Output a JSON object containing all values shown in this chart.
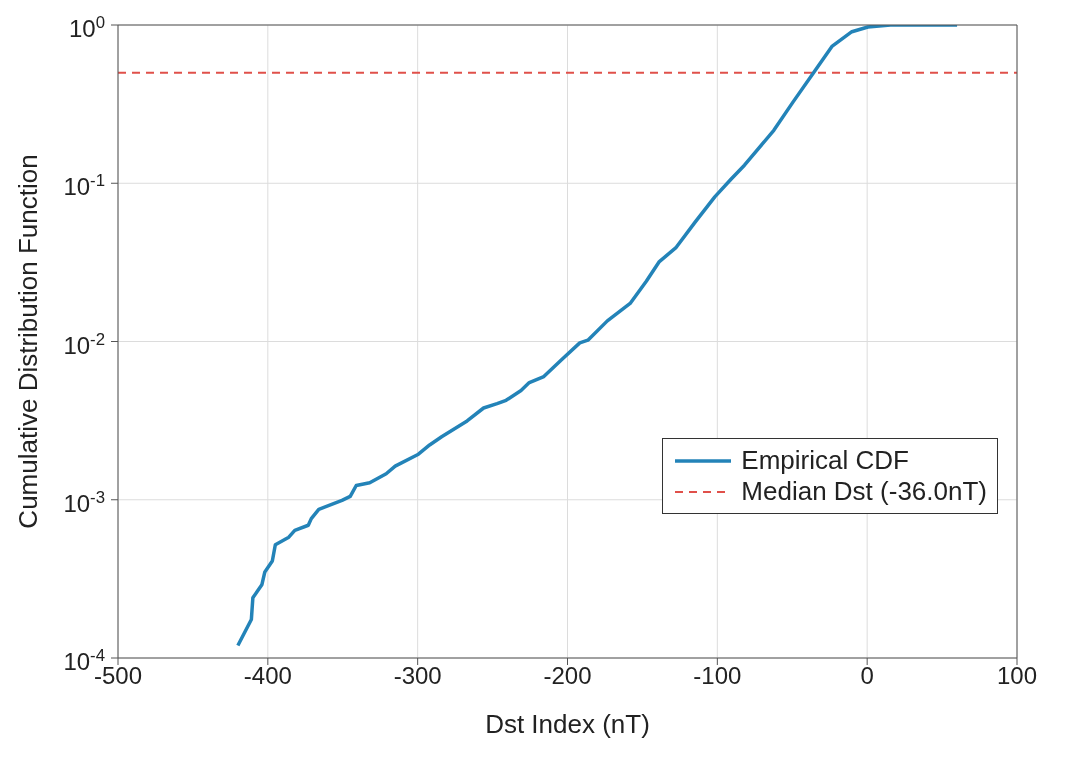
{
  "chart_data": {
    "type": "line",
    "xlabel": "Dst Index (nT)",
    "ylabel": "Cumulative Distribution Function",
    "log": "y",
    "grid": true,
    "legend": "right",
    "line_style": "solid",
    "marker": "none",
    "xlim": [
      -500,
      100
    ],
    "xticks": [
      -500,
      -400,
      -300,
      -200,
      -100,
      0,
      100
    ],
    "ylim": [
      0.0001,
      1
    ],
    "yticks": [
      {
        "value": 0.0001,
        "label": "10$^{-4}$"
      },
      {
        "value": 0.001,
        "label": "10$^{-3}$"
      },
      {
        "value": 0.01,
        "label": "10$^{-2}$"
      },
      {
        "value": 0.1,
        "label": "10$^{-1}$"
      },
      {
        "value": 1,
        "label": "10$^{0}$"
      }
    ],
    "series": [
      {
        "name": "Empirical CDF",
        "color": "#2383b8",
        "x": [
          -420,
          -411,
          -410,
          -404,
          -402,
          -397,
          -395,
          -386,
          -382,
          -373,
          -371,
          -366,
          -350.5,
          -345,
          -341,
          -332,
          -321,
          -315,
          -299.5,
          -292,
          -284,
          -267,
          -256,
          -247,
          -241,
          -231,
          -225.5,
          -215.8,
          -203.8,
          -191.8,
          -186.4,
          -173.4,
          -158.2,
          -147.4,
          -138.7,
          -127.8,
          -114.7,
          -101.7,
          -90.9,
          -81.9,
          -62.3,
          -49.3,
          -35.2,
          -23.3,
          -10.2,
          0.5,
          15.6,
          60
        ],
        "values": [
          0.00012,
          0.000175,
          0.00024,
          0.00029,
          0.00035,
          0.00041,
          0.00052,
          0.00058,
          0.00064,
          0.00069,
          0.00076,
          0.00087,
          0.00099,
          0.00105,
          0.00123,
          0.00128,
          0.00146,
          0.00163,
          0.00194,
          0.00222,
          0.0025,
          0.00315,
          0.0038,
          0.00405,
          0.00425,
          0.0049,
          0.0055,
          0.006,
          0.0077,
          0.0098,
          0.0102,
          0.0135,
          0.0174,
          0.024,
          0.032,
          0.039,
          0.057,
          0.082,
          0.106,
          0.13,
          0.216,
          0.328,
          0.509,
          0.736,
          0.907,
          0.972,
          1,
          1
        ]
      }
    ],
    "ref_lines": [
      {
        "axis": "y",
        "value": 0.5,
        "label": "Median Dst (-36.0nT)",
        "color": "#e0504a",
        "line_style": "dashed"
      }
    ]
  }
}
